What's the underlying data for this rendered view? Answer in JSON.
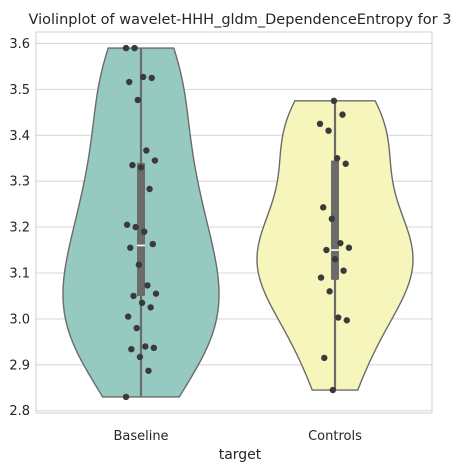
{
  "chart_data": {
    "type": "violin",
    "title": "Violinplot of wavelet-HHH_gldm_DependenceEntropy for 3",
    "xlabel": "target",
    "ylabel": "",
    "ylim": [
      2.795,
      3.625
    ],
    "yticks": [
      "2.8",
      "2.9",
      "3.0",
      "3.1",
      "3.2",
      "3.3",
      "3.4",
      "3.5",
      "3.6"
    ],
    "grid": true,
    "categories": [
      "Baseline",
      "Controls"
    ],
    "colors": {
      "Baseline": "#96cac1",
      "Controls": "#f6f6bc",
      "outline": "#6b6b6b",
      "points": "#3a3a3a",
      "grid": "#d9d9d9",
      "box": "#6b6b6b"
    },
    "groups": [
      {
        "name": "Baseline",
        "min": 2.83,
        "max": 3.59,
        "q1": 3.05,
        "median": 3.16,
        "q3": 3.34,
        "points": [
          3.59,
          3.59,
          3.527,
          3.525,
          3.516,
          3.477,
          3.367,
          3.345,
          3.335,
          3.33,
          3.283,
          3.205,
          3.2,
          3.19,
          3.163,
          3.155,
          3.118,
          3.073,
          3.055,
          3.05,
          3.035,
          3.025,
          3.005,
          2.98,
          2.94,
          2.937,
          2.934,
          2.917,
          2.887,
          2.83
        ]
      },
      {
        "name": "Controls",
        "min": 2.845,
        "max": 3.475,
        "q1": 3.085,
        "median": 3.15,
        "q3": 3.345,
        "points": [
          3.475,
          3.445,
          3.425,
          3.41,
          3.35,
          3.338,
          3.243,
          3.218,
          3.165,
          3.155,
          3.15,
          3.13,
          3.105,
          3.09,
          3.06,
          3.003,
          2.997,
          2.915,
          2.845
        ]
      }
    ]
  }
}
